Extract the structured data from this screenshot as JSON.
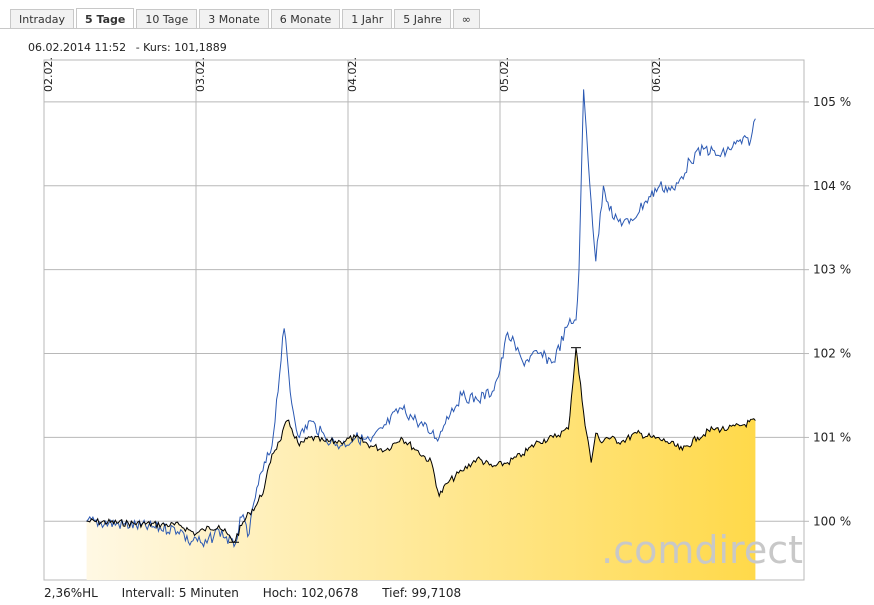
{
  "tabs": [
    "Intraday",
    "5 Tage",
    "10 Tage",
    "3 Monate",
    "6 Monate",
    "1 Jahr",
    "5 Jahre",
    "∞"
  ],
  "active_tab": "5 Tage",
  "info": {
    "datetime": "06.02.2014  11:52",
    "kurs": "- Kurs: 101,1889"
  },
  "footer": {
    "hl": "2,36%HL",
    "intervall": "Intervall: 5 Minuten",
    "hoch": "Hoch: 102,0678",
    "tief": "Tief: 99,7108"
  },
  "watermark": ".comdirect",
  "colors": {
    "compare_line": "#2b59b3",
    "main_line": "#000000",
    "fill_start": "#fff8e4",
    "fill_end": "#ffd94a",
    "grid": "#b8b8b8"
  },
  "chart_data": {
    "type": "area",
    "date_labels": [
      "02.02.",
      "03.02.",
      "04.02.",
      "05.02.",
      "06.02."
    ],
    "y_ticks": [
      100,
      101,
      102,
      103,
      104,
      105
    ],
    "y_tick_labels": [
      "100 %",
      "101 %",
      "102 %",
      "103 %",
      "104 %",
      "105 %"
    ],
    "y_range": [
      99.3,
      105.5
    ],
    "x_range": [
      0,
      5
    ],
    "series": [
      {
        "role": "main",
        "x": [
          0.28,
          0.9,
          0.95,
          1.0,
          1.05,
          1.15,
          1.25,
          1.3,
          1.35,
          1.4,
          1.45,
          1.5,
          1.55,
          1.6,
          1.63,
          1.68,
          1.75,
          1.85,
          1.95,
          2.05,
          2.15,
          2.25,
          2.35,
          2.45,
          2.55,
          2.6,
          2.65,
          2.75,
          2.85,
          2.95,
          3.05,
          3.15,
          3.25,
          3.35,
          3.45,
          3.5,
          3.55,
          3.6,
          3.63,
          3.66,
          3.7,
          3.8,
          3.9,
          4.0,
          4.1,
          4.2,
          4.3,
          4.4,
          4.5,
          4.6,
          4.68
        ],
        "y": [
          100.0,
          99.95,
          99.9,
          99.85,
          99.9,
          99.95,
          99.75,
          99.95,
          100.1,
          100.2,
          100.4,
          100.8,
          100.95,
          101.2,
          101.1,
          100.9,
          101.0,
          100.95,
          100.95,
          101.0,
          100.9,
          100.85,
          101.0,
          100.85,
          100.7,
          100.3,
          100.45,
          100.6,
          100.75,
          100.65,
          100.7,
          100.8,
          100.95,
          101.0,
          101.1,
          102.07,
          101.3,
          100.7,
          101.05,
          100.95,
          101.0,
          100.95,
          101.05,
          101.0,
          100.95,
          100.85,
          101.0,
          101.1,
          101.1,
          101.15,
          101.2
        ]
      },
      {
        "role": "compare",
        "x": [
          0.28,
          0.9,
          0.95,
          1.0,
          1.05,
          1.15,
          1.25,
          1.3,
          1.35,
          1.4,
          1.5,
          1.58,
          1.63,
          1.68,
          1.75,
          1.85,
          1.95,
          2.05,
          2.15,
          2.25,
          2.35,
          2.45,
          2.55,
          2.6,
          2.65,
          2.75,
          2.85,
          2.95,
          3.0,
          3.05,
          3.15,
          3.25,
          3.35,
          3.45,
          3.5,
          3.52,
          3.55,
          3.6,
          3.63,
          3.68,
          3.75,
          3.85,
          3.95,
          4.05,
          4.15,
          4.25,
          4.35,
          4.45,
          4.55,
          4.65,
          4.68
        ],
        "y": [
          100.0,
          99.9,
          99.75,
          99.8,
          99.7,
          99.9,
          99.7,
          100.05,
          99.85,
          100.4,
          100.9,
          102.3,
          101.4,
          101.0,
          101.2,
          101.0,
          100.9,
          101.0,
          100.95,
          101.15,
          101.35,
          101.2,
          101.05,
          101.0,
          101.25,
          101.5,
          101.45,
          101.55,
          101.8,
          102.25,
          101.9,
          102.0,
          101.9,
          102.35,
          102.4,
          103.0,
          105.15,
          103.8,
          103.1,
          104.0,
          103.6,
          103.55,
          103.8,
          104.0,
          103.95,
          104.3,
          104.45,
          104.35,
          104.5,
          104.55,
          104.8
        ]
      }
    ]
  }
}
